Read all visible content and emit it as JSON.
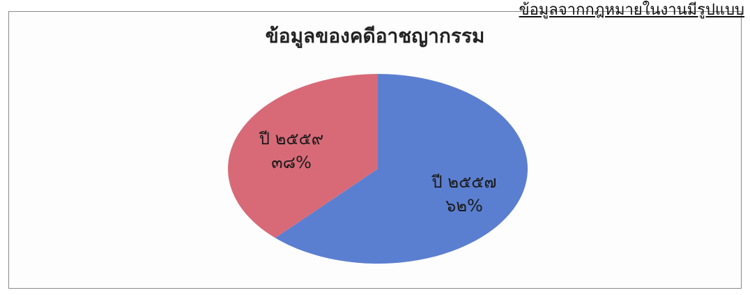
{
  "top_text": "ข้อมูลจากกฎหมายในงานมีรูปแบบ",
  "chart_data": {
    "type": "pie",
    "title": "ข้อมูลของคดีอาชญากรรม",
    "slices": [
      {
        "name": "ปี ๒๕๕๗",
        "value": 62,
        "value_label": "๖๒%",
        "color": "#5b7fd0"
      },
      {
        "name": "ปี ๒๕๕๙",
        "value": 38,
        "value_label": "๓๘%",
        "color": "#d86a78"
      }
    ],
    "legend": "none",
    "labels_inside": true
  }
}
